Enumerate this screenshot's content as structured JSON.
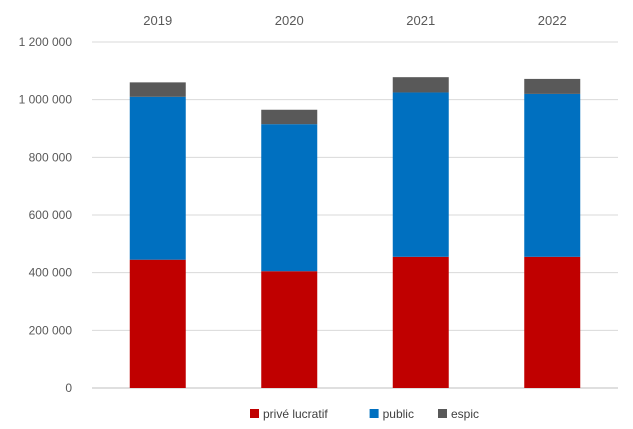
{
  "chart_data": {
    "type": "bar",
    "stacked": true,
    "categories": [
      "2019",
      "2020",
      "2021",
      "2022"
    ],
    "series": [
      {
        "name": "privé lucratif",
        "color": "#C00000",
        "values": [
          445000,
          405000,
          455000,
          455000
        ]
      },
      {
        "name": "public",
        "color": "#0070C0",
        "values": [
          565000,
          510000,
          570000,
          565000
        ]
      },
      {
        "name": "espic",
        "color": "#595959",
        "values": [
          50000,
          50000,
          53000,
          52000
        ]
      }
    ],
    "ylim": [
      0,
      1200000
    ],
    "yticks": [
      0,
      200000,
      400000,
      600000,
      800000,
      1000000,
      1200000
    ],
    "ytick_labels": [
      "0",
      "200 000",
      "400 000",
      "600 000",
      "800 000",
      "1 000 000",
      "1 200 000"
    ],
    "category_axis_position": "top",
    "grid": true,
    "legend_position": "bottom"
  }
}
